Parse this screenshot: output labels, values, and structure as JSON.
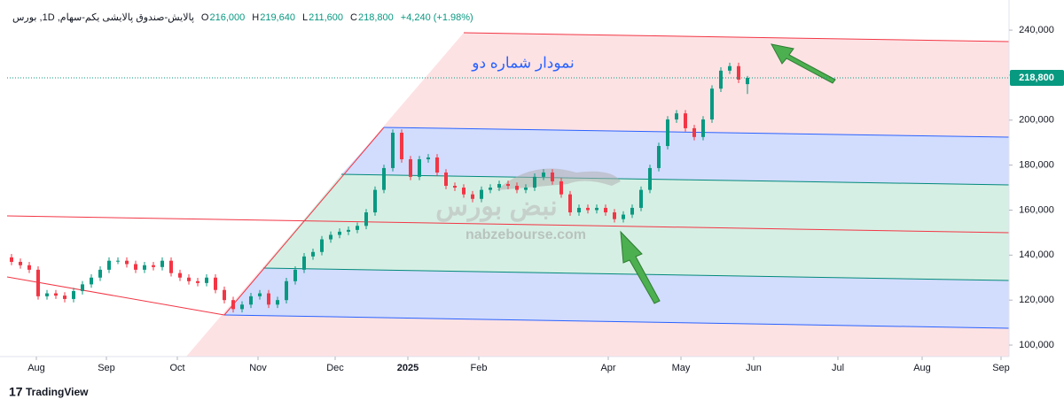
{
  "header": {
    "symbol": "پالایش-صندوق پالایشی یکم-سهام, 1D, بورس",
    "ohlc": [
      {
        "letter": "O",
        "value": "216,000"
      },
      {
        "letter": "H",
        "value": "219,640"
      },
      {
        "letter": "L",
        "value": "211,600"
      },
      {
        "letter": "C",
        "value": "218,800"
      }
    ],
    "change": "+4,240 (+1.98%)"
  },
  "watermark": {
    "logo": "نبض بورس",
    "site": "nabzebourse.com"
  },
  "branding": "TradingView",
  "chart_data": {
    "type": "candlestick",
    "title": "نمودار شماره دو",
    "up_color": "#089981",
    "down_color": "#f23645",
    "x": [
      1,
      3,
      5,
      7,
      9,
      11,
      13,
      15,
      17,
      19,
      21,
      23,
      25,
      27,
      29,
      31,
      33,
      35,
      37,
      39,
      41,
      43,
      45,
      47,
      49,
      51,
      53,
      55,
      57,
      59,
      61,
      63,
      65,
      67,
      69,
      71,
      73,
      75,
      77,
      79,
      81,
      83,
      85,
      87,
      89,
      91,
      93,
      95,
      97,
      99,
      101,
      103,
      105,
      107,
      109,
      111,
      113,
      115,
      117,
      119,
      121,
      123,
      125,
      127,
      129,
      131,
      133,
      135,
      137,
      139,
      141,
      143,
      145,
      147,
      149,
      151,
      153,
      155,
      157,
      159,
      161,
      163,
      165,
      167
    ],
    "open": [
      139000,
      137000,
      135500,
      133500,
      121700,
      123000,
      122000,
      120500,
      124000,
      127000,
      130000,
      133500,
      137500,
      137500,
      136000,
      133500,
      135500,
      134700,
      137500,
      132000,
      130000,
      128400,
      127600,
      130000,
      124500,
      120000,
      116000,
      118000,
      121700,
      123000,
      118000,
      120000,
      128400,
      133500,
      139400,
      141400,
      147000,
      149000,
      150400,
      151200,
      153000,
      159000,
      169000,
      178700,
      194400,
      182600,
      174800,
      182600,
      183400,
      176700,
      170800,
      170000,
      167000,
      165000,
      169000,
      170000,
      171600,
      170800,
      169000,
      170000,
      174800,
      176700,
      172800,
      167000,
      159000,
      161000,
      160000,
      161000,
      159000,
      156000,
      158000,
      161000,
      169000,
      178700,
      188500,
      200300,
      203000,
      196400,
      192500,
      200300,
      214000,
      222000,
      224000,
      216000
    ],
    "high": [
      140500,
      138500,
      137000,
      135000,
      124500,
      124500,
      123500,
      125500,
      128500,
      131500,
      135000,
      139000,
      139000,
      139000,
      137500,
      137000,
      137000,
      139000,
      139000,
      133500,
      131500,
      129900,
      131500,
      131500,
      126000,
      121500,
      119500,
      123200,
      124500,
      124500,
      121500,
      129900,
      135000,
      140900,
      142900,
      148500,
      150500,
      151900,
      152700,
      154500,
      160500,
      170500,
      180200,
      195900,
      195900,
      184100,
      184100,
      184900,
      184900,
      178200,
      172300,
      171500,
      168500,
      170500,
      171500,
      173100,
      173100,
      172300,
      171500,
      176300,
      178200,
      178200,
      174300,
      168500,
      162500,
      162500,
      162500,
      162500,
      160500,
      159500,
      162500,
      170500,
      180200,
      190000,
      201800,
      204500,
      204500,
      197900,
      201800,
      215500,
      223500,
      225500,
      225500,
      219640
    ],
    "low": [
      135500,
      134000,
      132000,
      120200,
      120200,
      120500,
      119000,
      119000,
      122500,
      125500,
      128500,
      132000,
      136000,
      134500,
      132000,
      132000,
      133200,
      133200,
      130500,
      128500,
      126900,
      126100,
      126100,
      123000,
      118500,
      114500,
      114500,
      116500,
      120200,
      116500,
      116500,
      118500,
      126900,
      132000,
      137900,
      139900,
      145500,
      147500,
      148900,
      149700,
      151500,
      157500,
      167500,
      177200,
      181100,
      173300,
      173300,
      181100,
      175200,
      169300,
      168500,
      165500,
      163500,
      163500,
      167500,
      168500,
      169300,
      167500,
      167500,
      168500,
      173300,
      171300,
      165500,
      157500,
      157500,
      158500,
      158500,
      157500,
      154500,
      154500,
      156500,
      159500,
      167500,
      177200,
      187000,
      198800,
      194900,
      191000,
      191000,
      198800,
      212500,
      220500,
      216500,
      211600
    ],
    "close": [
      137000,
      135500,
      133500,
      121700,
      123000,
      122000,
      120500,
      124000,
      127000,
      130000,
      133500,
      137500,
      137500,
      136000,
      133500,
      135500,
      134700,
      137500,
      132000,
      130000,
      128400,
      127600,
      130000,
      124500,
      120000,
      116000,
      118000,
      121700,
      123000,
      118000,
      120000,
      128400,
      133500,
      139400,
      141400,
      147000,
      149000,
      150400,
      151200,
      153000,
      159000,
      169000,
      178700,
      194400,
      182600,
      174800,
      182600,
      183400,
      176700,
      170800,
      170000,
      167000,
      165000,
      169000,
      170000,
      171600,
      170800,
      169000,
      170000,
      174800,
      176700,
      172800,
      167000,
      159000,
      161000,
      160000,
      161000,
      159000,
      156000,
      158000,
      161000,
      169000,
      178700,
      188500,
      200300,
      203000,
      196400,
      192500,
      200300,
      214000,
      222000,
      224000,
      218000,
      218800
    ],
    "xlim": [
      0,
      226
    ],
    "xticks": [
      {
        "value": 6.6,
        "label": "Aug"
      },
      {
        "value": 22.4,
        "label": "Sep"
      },
      {
        "value": 38.4,
        "label": "Oct"
      },
      {
        "value": 56.6,
        "label": "Nov"
      },
      {
        "value": 74,
        "label": "Dec"
      },
      {
        "value": 90.4,
        "label": "2025"
      },
      {
        "value": 106.4,
        "label": "Feb"
      },
      {
        "value": 135.6,
        "label": "Apr"
      },
      {
        "value": 152,
        "label": "May"
      },
      {
        "value": 168.4,
        "label": "Jun"
      },
      {
        "value": 187.4,
        "label": "Jul"
      },
      {
        "value": 206.4,
        "label": "Aug"
      },
      {
        "value": 224.2,
        "label": "Sep"
      }
    ],
    "ylim": [
      94900,
      247500
    ],
    "yticks": [
      {
        "value": 100000,
        "label": "100,000"
      },
      {
        "value": 120000,
        "label": "120,000"
      },
      {
        "value": 140000,
        "label": "140,000"
      },
      {
        "value": 160000,
        "label": "160,000"
      },
      {
        "value": 180000,
        "label": "180,000"
      },
      {
        "value": 200000,
        "label": "200,000"
      },
      {
        "value": 220000,
        "label": "220,000"
      },
      {
        "value": 240000,
        "label": "240,000"
      }
    ],
    "last_price": {
      "value": 218800,
      "label": "218,800",
      "color": "#089981"
    }
  }
}
